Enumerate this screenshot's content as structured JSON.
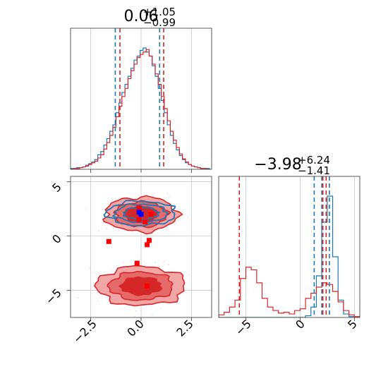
{
  "chart_data": {
    "type": "corner",
    "parameters": [
      {
        "title": {
          "main": "0.06",
          "sup": "+1.05",
          "sub": "−0.99"
        },
        "range": [
          -3.5,
          3.5
        ],
        "ticks": [
          {
            "value": -2.5,
            "label": "−2.5"
          },
          {
            "value": 0.0,
            "label": "0.0"
          },
          {
            "value": 2.5,
            "label": "2.5"
          }
        ]
      },
      {
        "title": {
          "main": "−3.98",
          "sup": "+6.24",
          "sub": "−1.41"
        },
        "range": [
          -7.5,
          5.5
        ],
        "ticks": [
          {
            "value": -5,
            "label": "−5"
          },
          {
            "value": 0,
            "label": "0"
          },
          {
            "value": 5,
            "label": "5"
          }
        ]
      }
    ],
    "series": [
      {
        "color": "#1f77b4",
        "marginal_1": {
          "bins": [
            -3.5,
            -3.35,
            -3.2,
            -3.05,
            -2.9,
            -2.75,
            -2.6,
            -2.45,
            -2.3,
            -2.15,
            -2.0,
            -1.85,
            -1.7,
            -1.55,
            -1.4,
            -1.25,
            -1.1,
            -0.95,
            -0.8,
            -0.65,
            -0.5,
            -0.35,
            -0.2,
            -0.05,
            0.1,
            0.25,
            0.4,
            0.55,
            0.7,
            0.85,
            1.0,
            1.15,
            1.3,
            1.45,
            1.6,
            1.75,
            1.9,
            2.05,
            2.2,
            2.35,
            2.5,
            2.65,
            2.8,
            2.95,
            3.1,
            3.25,
            3.4
          ],
          "counts": [
            1,
            1,
            2,
            2,
            3,
            5,
            7,
            9,
            12,
            18,
            22,
            30,
            38,
            47,
            55,
            70,
            82,
            95,
            105,
            115,
            125,
            135,
            140,
            147,
            150,
            145,
            140,
            128,
            115,
            100,
            85,
            70,
            55,
            42,
            32,
            24,
            17,
            12,
            8,
            6,
            4,
            3,
            2,
            1,
            1,
            1
          ],
          "quantiles": [
            -1.28,
            0.06,
            0.92
          ]
        },
        "marginal_2": {
          "bins": [
            -7.5,
            -7.0,
            -6.5,
            -6.0,
            -5.5,
            -5.0,
            -4.5,
            -4.0,
            -3.5,
            -3.0,
            -2.5,
            -2.0,
            -1.5,
            -1.0,
            -0.5,
            0.0,
            0.5,
            1.0,
            1.5,
            2.0,
            2.5,
            3.0,
            3.5,
            4.0,
            4.5,
            5.0,
            5.5
          ],
          "counts": [
            0,
            0,
            0,
            0,
            0,
            0,
            0,
            0,
            0,
            0,
            0,
            0,
            0,
            0,
            0,
            0,
            2,
            12,
            48,
            110,
            140,
            70,
            20,
            4,
            1,
            0
          ],
          "quantiles": [
            1.3,
            2.0,
            2.7
          ]
        },
        "scatter": [
          {
            "x": -0.1,
            "y": 2.2
          },
          {
            "x": 0.0,
            "y": 2.0
          }
        ]
      },
      {
        "color": "#d62728",
        "marginal_1": {
          "bins": [
            -3.5,
            -3.35,
            -3.2,
            -3.05,
            -2.9,
            -2.75,
            -2.6,
            -2.45,
            -2.3,
            -2.15,
            -2.0,
            -1.85,
            -1.7,
            -1.55,
            -1.4,
            -1.25,
            -1.1,
            -0.95,
            -0.8,
            -0.65,
            -0.5,
            -0.35,
            -0.2,
            -0.05,
            0.1,
            0.25,
            0.4,
            0.55,
            0.7,
            0.85,
            1.0,
            1.15,
            1.3,
            1.45,
            1.6,
            1.75,
            1.9,
            2.05,
            2.2,
            2.35,
            2.5,
            2.65,
            2.8,
            2.95,
            3.1,
            3.25,
            3.4
          ],
          "counts": [
            0,
            1,
            1,
            2,
            3,
            4,
            6,
            8,
            10,
            14,
            18,
            25,
            33,
            42,
            52,
            65,
            78,
            90,
            100,
            112,
            122,
            130,
            138,
            142,
            145,
            148,
            140,
            130,
            118,
            105,
            90,
            75,
            60,
            47,
            36,
            27,
            19,
            13,
            9,
            6,
            4,
            3,
            2,
            1,
            1,
            0
          ],
          "quantiles": [
            -1.05,
            0.06,
            1.12
          ]
        },
        "marginal_2": {
          "bins": [
            -7.5,
            -7.0,
            -6.5,
            -6.0,
            -5.5,
            -5.0,
            -4.5,
            -4.0,
            -3.5,
            -3.0,
            -2.5,
            -2.0,
            -1.5,
            -1.0,
            -0.5,
            0.0,
            0.5,
            1.0,
            1.5,
            2.0,
            2.5,
            3.0,
            3.5,
            4.0,
            4.5,
            5.0,
            5.5
          ],
          "counts": [
            3,
            6,
            12,
            20,
            45,
            58,
            55,
            40,
            22,
            12,
            8,
            5,
            6,
            4,
            8,
            10,
            22,
            28,
            35,
            40,
            38,
            30,
            18,
            8,
            3,
            1
          ],
          "quantiles": [
            -5.6,
            2.1,
            2.4
          ]
        },
        "scatter": [
          {
            "x": -0.1,
            "y": 2.6
          },
          {
            "x": 0.5,
            "y": 2.0
          },
          {
            "x": -0.1,
            "y": 1.5
          },
          {
            "x": 0.2,
            "y": 1.3
          },
          {
            "x": -1.6,
            "y": -0.5
          },
          {
            "x": 0.4,
            "y": -0.4
          },
          {
            "x": 0.3,
            "y": -0.8
          },
          {
            "x": -0.2,
            "y": -2.5
          },
          {
            "x": 0.3,
            "y": -4.6
          }
        ],
        "modes": [
          {
            "cx": 0.0,
            "cy": 2.0,
            "rx": 1.8,
            "ry": 1.6
          },
          {
            "cx": 0.0,
            "cy": -4.6,
            "rx": 2.2,
            "ry": 1.8
          }
        ]
      }
    ],
    "grid": true
  }
}
